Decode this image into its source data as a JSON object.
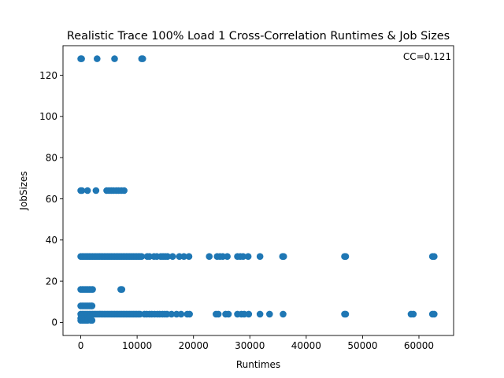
{
  "chart_data": {
    "type": "scatter",
    "title": "Realistic Trace 100% Load 1 Cross-Correlation Runtimes & Job Sizes",
    "xlabel": "Runtimes",
    "ylabel": "JobSizes",
    "annotation": "CC=0.121",
    "xlim": [
      -3150,
      66150
    ],
    "ylim": [
      -6.35,
      134.35
    ],
    "xticks": [
      0,
      10000,
      20000,
      30000,
      40000,
      50000,
      60000
    ],
    "xtick_labels": [
      "0",
      "10000",
      "20000",
      "30000",
      "40000",
      "50000",
      "60000"
    ],
    "yticks": [
      0,
      20,
      40,
      60,
      80,
      100,
      120
    ],
    "ytick_labels": [
      "0",
      "20",
      "40",
      "60",
      "80",
      "100",
      "120"
    ],
    "grid": false,
    "legend": "none",
    "series": [
      {
        "color": "#1f77b4",
        "points": [
          [
            0,
            128
          ],
          [
            150,
            128
          ],
          [
            2900,
            128
          ],
          [
            6000,
            128
          ],
          [
            10800,
            128
          ],
          [
            11000,
            128
          ],
          [
            0,
            64
          ],
          [
            200,
            64
          ],
          [
            1200,
            64
          ],
          [
            2700,
            64
          ],
          [
            4600,
            64
          ],
          [
            5000,
            64
          ],
          [
            5400,
            64
          ],
          [
            5800,
            64
          ],
          [
            6300,
            64
          ],
          [
            6700,
            64
          ],
          [
            7200,
            64
          ],
          [
            7700,
            64
          ],
          [
            0,
            32
          ],
          [
            300,
            32
          ],
          [
            600,
            32
          ],
          [
            900,
            32
          ],
          [
            1200,
            32
          ],
          [
            1500,
            32
          ],
          [
            1800,
            32
          ],
          [
            2100,
            32
          ],
          [
            2400,
            32
          ],
          [
            2700,
            32
          ],
          [
            3000,
            32
          ],
          [
            3300,
            32
          ],
          [
            3600,
            32
          ],
          [
            3900,
            32
          ],
          [
            4200,
            32
          ],
          [
            4500,
            32
          ],
          [
            4800,
            32
          ],
          [
            5100,
            32
          ],
          [
            5400,
            32
          ],
          [
            5700,
            32
          ],
          [
            6000,
            32
          ],
          [
            6300,
            32
          ],
          [
            6600,
            32
          ],
          [
            6900,
            32
          ],
          [
            7200,
            32
          ],
          [
            7500,
            32
          ],
          [
            7800,
            32
          ],
          [
            8100,
            32
          ],
          [
            8400,
            32
          ],
          [
            8700,
            32
          ],
          [
            9000,
            32
          ],
          [
            9300,
            32
          ],
          [
            9600,
            32
          ],
          [
            9900,
            32
          ],
          [
            10200,
            32
          ],
          [
            10500,
            32
          ],
          [
            10800,
            32
          ],
          [
            11800,
            32
          ],
          [
            12200,
            32
          ],
          [
            13000,
            32
          ],
          [
            13500,
            32
          ],
          [
            14200,
            32
          ],
          [
            14600,
            32
          ],
          [
            15000,
            32
          ],
          [
            15400,
            32
          ],
          [
            16300,
            32
          ],
          [
            17500,
            32
          ],
          [
            18300,
            32
          ],
          [
            19200,
            32
          ],
          [
            22800,
            32
          ],
          [
            24200,
            32
          ],
          [
            24700,
            32
          ],
          [
            25200,
            32
          ],
          [
            26000,
            32
          ],
          [
            27800,
            32
          ],
          [
            28300,
            32
          ],
          [
            28800,
            32
          ],
          [
            29700,
            32
          ],
          [
            31800,
            32
          ],
          [
            35800,
            32
          ],
          [
            36000,
            32
          ],
          [
            46800,
            32
          ],
          [
            47000,
            32
          ],
          [
            62400,
            32
          ],
          [
            62700,
            32
          ],
          [
            0,
            16
          ],
          [
            300,
            16
          ],
          [
            600,
            16
          ],
          [
            900,
            16
          ],
          [
            1200,
            16
          ],
          [
            1500,
            16
          ],
          [
            1800,
            16
          ],
          [
            2100,
            16
          ],
          [
            7100,
            16
          ],
          [
            7300,
            16
          ],
          [
            0,
            8
          ],
          [
            300,
            8
          ],
          [
            600,
            8
          ],
          [
            900,
            8
          ],
          [
            1200,
            8
          ],
          [
            1500,
            8
          ],
          [
            1800,
            8
          ],
          [
            2000,
            8
          ],
          [
            0,
            4
          ],
          [
            300,
            4
          ],
          [
            600,
            4
          ],
          [
            900,
            4
          ],
          [
            1200,
            4
          ],
          [
            1500,
            4
          ],
          [
            1800,
            4
          ],
          [
            2100,
            4
          ],
          [
            2400,
            4
          ],
          [
            2700,
            4
          ],
          [
            3000,
            4
          ],
          [
            3300,
            4
          ],
          [
            3600,
            4
          ],
          [
            3900,
            4
          ],
          [
            4200,
            4
          ],
          [
            4500,
            4
          ],
          [
            4800,
            4
          ],
          [
            5100,
            4
          ],
          [
            5400,
            4
          ],
          [
            5700,
            4
          ],
          [
            6000,
            4
          ],
          [
            6300,
            4
          ],
          [
            6600,
            4
          ],
          [
            6900,
            4
          ],
          [
            7200,
            4
          ],
          [
            7500,
            4
          ],
          [
            7800,
            4
          ],
          [
            8100,
            4
          ],
          [
            8400,
            4
          ],
          [
            8700,
            4
          ],
          [
            9000,
            4
          ],
          [
            9300,
            4
          ],
          [
            9600,
            4
          ],
          [
            9900,
            4
          ],
          [
            10200,
            4
          ],
          [
            10500,
            4
          ],
          [
            11300,
            4
          ],
          [
            11700,
            4
          ],
          [
            12200,
            4
          ],
          [
            12600,
            4
          ],
          [
            13100,
            4
          ],
          [
            13600,
            4
          ],
          [
            14000,
            4
          ],
          [
            14500,
            4
          ],
          [
            14900,
            4
          ],
          [
            15300,
            4
          ],
          [
            16100,
            4
          ],
          [
            17000,
            4
          ],
          [
            17800,
            4
          ],
          [
            18900,
            4
          ],
          [
            19300,
            4
          ],
          [
            24000,
            4
          ],
          [
            24400,
            4
          ],
          [
            25700,
            4
          ],
          [
            26200,
            4
          ],
          [
            27800,
            4
          ],
          [
            28500,
            4
          ],
          [
            29000,
            4
          ],
          [
            29800,
            4
          ],
          [
            31800,
            4
          ],
          [
            33500,
            4
          ],
          [
            35900,
            4
          ],
          [
            46800,
            4
          ],
          [
            47000,
            4
          ],
          [
            58600,
            4
          ],
          [
            59000,
            4
          ],
          [
            62400,
            4
          ],
          [
            62700,
            4
          ],
          [
            0,
            2
          ],
          [
            300,
            2
          ],
          [
            600,
            2
          ],
          [
            900,
            2
          ],
          [
            1200,
            2
          ],
          [
            1500,
            2
          ],
          [
            0,
            1
          ],
          [
            300,
            1
          ],
          [
            600,
            1
          ],
          [
            900,
            1
          ],
          [
            1200,
            1
          ],
          [
            1800,
            1
          ],
          [
            2000,
            1
          ]
        ]
      }
    ]
  }
}
